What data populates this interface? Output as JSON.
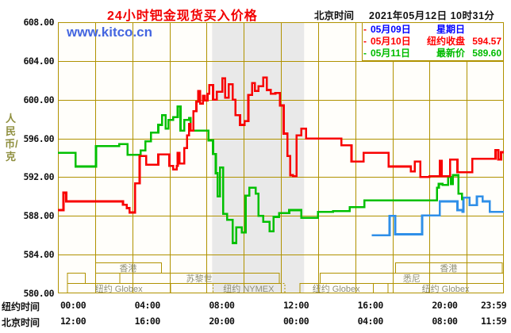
{
  "header": {
    "title": "24小时钯金现货买入价格",
    "timezone_label": "北京时间",
    "datetime": "2021年05月12日 10时31分"
  },
  "watermark": "www.kitco.cn",
  "legend": {
    "items": [
      {
        "dash_glyph": "-",
        "dash_color": "#ff0000",
        "date": "05月09日",
        "label": "星期日",
        "value": "",
        "text_color": "#0000ff"
      },
      {
        "dash_glyph": "-",
        "dash_color": "#ff0000",
        "date": "05月10日",
        "label": "纽约收盘",
        "value": "594.57",
        "text_color": "#ff0000"
      },
      {
        "dash_glyph": "-",
        "dash_color": "#00bb00",
        "date": "05月11日",
        "label": "最新价",
        "value": "589.60",
        "text_color": "#00bb00"
      }
    ]
  },
  "y_axis": {
    "unit_label": "人民币/克",
    "min": 580,
    "max": 608,
    "step": 4,
    "tick_labels": [
      "608.00",
      "604.00",
      "600.00",
      "596.00",
      "592.00",
      "588.00",
      "584.00",
      "580.00"
    ]
  },
  "x_axis": {
    "hours": 24,
    "gridline_every_hours": 2,
    "rows": [
      {
        "label": "纽约时间",
        "ticks": [
          "00:00",
          "04:00",
          "08:00",
          "12:00",
          "16:00",
          "20:00",
          "23:59"
        ]
      },
      {
        "label": "北京时间",
        "ticks": [
          "12:00",
          "16:00",
          "20:00",
          "00:00",
          "04:00",
          "08:00",
          "11:59"
        ]
      }
    ]
  },
  "colors": {
    "grid": "#b09200",
    "plot_bg": "#fffefa",
    "nymex_band": "#e9e9e9",
    "session_label": "#8f8f76",
    "line_sunday": "#2f8fe8",
    "line_monday": "#f80000",
    "line_tuesday": "#00c000"
  },
  "nymex_floor_band": {
    "t0": 8.3,
    "t1": 13.25
  },
  "sessions": [
    {
      "row": 1,
      "t0": 2.0,
      "t1": 5.55,
      "label": "香港",
      "dotted": false
    },
    {
      "row": 1,
      "t0": 18.15,
      "t1": 23.9,
      "label": "香港",
      "dotted": false
    },
    {
      "row": 2,
      "t0": 0.5,
      "t1": 1.45,
      "label": "",
      "dotted": false
    },
    {
      "row": 2,
      "t0": 3.3,
      "t1": 11.9,
      "label": "苏黎世",
      "dotted": false
    },
    {
      "row": 2,
      "t0": 14.1,
      "t1": 24.0,
      "label": "悉尼",
      "dotted": false
    },
    {
      "row": 3,
      "t0": 0.5,
      "t1": 6.05,
      "label": "纽约 Globex",
      "dotted": false
    },
    {
      "row": 3,
      "t0": 8.33,
      "t1": 12.2,
      "label": "纽约 NYMEX",
      "dotted": true
    },
    {
      "row": 3,
      "t0": 13.0,
      "t1": 16.95,
      "label": "纽约 Globex",
      "dotted": false
    },
    {
      "row": 3,
      "t0": 17.75,
      "t1": 24.0,
      "label": "纽约 Globex",
      "dotted": false
    }
  ],
  "chart_data": {
    "type": "line",
    "title": "24小时钯金现货买入价格",
    "xlabel": "纽约时间 00:00-23:59 / 北京时间 12:00-11:59",
    "ylabel": "人民币/克",
    "ylim": [
      580,
      608
    ],
    "xlim_hours": [
      0,
      24
    ],
    "grid": true,
    "legend_position": "top-right",
    "step_interpolation": true,
    "series": [
      {
        "name": "05月09日 星期日",
        "color": "#2f8fe8",
        "extend_to_end": true,
        "points": [
          [
            16.9,
            586.0
          ],
          [
            17.8,
            586.0
          ],
          [
            17.85,
            588.0
          ],
          [
            18.05,
            588.0
          ],
          [
            18.15,
            586.1
          ],
          [
            19.45,
            586.1
          ],
          [
            19.6,
            588.05
          ],
          [
            20.5,
            588.05
          ],
          [
            20.55,
            589.5
          ],
          [
            21.4,
            589.5
          ],
          [
            21.5,
            588.6
          ],
          [
            21.78,
            588.4
          ],
          [
            21.82,
            589.9
          ],
          [
            22.1,
            589.9
          ],
          [
            22.15,
            589.1
          ],
          [
            22.5,
            589.1
          ],
          [
            22.55,
            590.0
          ],
          [
            22.8,
            590.0
          ],
          [
            22.85,
            589.5
          ],
          [
            23.2,
            589.5
          ],
          [
            23.25,
            588.4
          ],
          [
            24,
            588.4
          ]
        ]
      },
      {
        "name": "05月11日 最新价 589.60",
        "color": "#00c000",
        "extend_to_end": false,
        "points": [
          [
            0,
            594.5
          ],
          [
            0.75,
            594.5
          ],
          [
            0.95,
            593.1
          ],
          [
            1.9,
            593.1
          ],
          [
            2.05,
            595.2
          ],
          [
            3.3,
            595.4
          ],
          [
            3.75,
            594.3
          ],
          [
            4.45,
            594.75
          ],
          [
            4.7,
            595.7
          ],
          [
            5.0,
            596.6
          ],
          [
            5.4,
            597.4
          ],
          [
            5.6,
            598.4
          ],
          [
            5.8,
            597.0
          ],
          [
            5.95,
            597.9
          ],
          [
            6.2,
            598.2
          ],
          [
            6.45,
            599.3
          ],
          [
            6.6,
            596.8
          ],
          [
            6.8,
            597.9
          ],
          [
            7.05,
            598.1
          ],
          [
            7.15,
            596.8
          ],
          [
            7.85,
            596.8
          ],
          [
            8.1,
            595.8
          ],
          [
            8.35,
            594.4
          ],
          [
            8.5,
            592.4
          ],
          [
            8.6,
            590.0
          ],
          [
            8.72,
            593.0
          ],
          [
            8.9,
            588.2
          ],
          [
            9.1,
            587.6
          ],
          [
            9.4,
            585.2
          ],
          [
            9.6,
            586.8
          ],
          [
            9.9,
            586.3
          ],
          [
            10.1,
            590.1
          ],
          [
            10.3,
            590.9
          ],
          [
            10.65,
            590.3
          ],
          [
            10.8,
            588.0
          ],
          [
            11.05,
            587.4
          ],
          [
            11.4,
            586.4
          ],
          [
            11.6,
            587.9
          ],
          [
            11.9,
            588.3
          ],
          [
            12.45,
            588.6
          ],
          [
            13.1,
            587.8
          ],
          [
            14.0,
            588.4
          ],
          [
            14.8,
            588.5
          ],
          [
            15.7,
            588.9
          ],
          [
            16.5,
            589.6
          ],
          [
            20.15,
            589.6
          ],
          [
            20.4,
            590.9
          ],
          [
            20.5,
            591.3
          ],
          [
            20.7,
            591.2
          ],
          [
            21.0,
            592.0
          ],
          [
            21.15,
            591.3
          ],
          [
            21.25,
            592.2
          ],
          [
            21.55,
            590.3
          ],
          [
            21.75,
            589.6
          ]
        ]
      },
      {
        "name": "05月10日 纽约收盘 594.57",
        "color": "#f80000",
        "extend_to_end": true,
        "points": [
          [
            0,
            588.6
          ],
          [
            0.25,
            588.6
          ],
          [
            0.3,
            590.4
          ],
          [
            0.45,
            589.5
          ],
          [
            3.3,
            589.5
          ],
          [
            3.5,
            589.15
          ],
          [
            3.7,
            588.8
          ],
          [
            3.85,
            588.35
          ],
          [
            4.1,
            588.35
          ],
          [
            4.15,
            591.35
          ],
          [
            4.35,
            591.35
          ],
          [
            4.4,
            594.2
          ],
          [
            4.75,
            593.3
          ],
          [
            5.4,
            594.35
          ],
          [
            6.0,
            593.15
          ],
          [
            6.2,
            592.8
          ],
          [
            6.4,
            593.15
          ],
          [
            6.45,
            594.5
          ],
          [
            6.55,
            593.4
          ],
          [
            6.7,
            593.4
          ],
          [
            6.8,
            595.0
          ],
          [
            6.95,
            596.3
          ],
          [
            7.05,
            597.5
          ],
          [
            7.15,
            596.8
          ],
          [
            7.3,
            598.8
          ],
          [
            7.45,
            599.8
          ],
          [
            7.55,
            600.9
          ],
          [
            7.65,
            599.6
          ],
          [
            7.8,
            600.4
          ],
          [
            7.9,
            599.9
          ],
          [
            8.05,
            600.6
          ],
          [
            8.15,
            601.5
          ],
          [
            8.35,
            600.0
          ],
          [
            8.55,
            600.8
          ],
          [
            8.85,
            602.2
          ],
          [
            9.0,
            600.2
          ],
          [
            9.2,
            601.6
          ],
          [
            9.4,
            600.0
          ],
          [
            9.55,
            598.4
          ],
          [
            9.8,
            597.4
          ],
          [
            10.05,
            597.8
          ],
          [
            10.25,
            600.5
          ],
          [
            10.45,
            601.7
          ],
          [
            10.6,
            600.9
          ],
          [
            10.8,
            601.4
          ],
          [
            11.05,
            602.3
          ],
          [
            11.25,
            601.0
          ],
          [
            11.45,
            600.6
          ],
          [
            11.7,
            600.7
          ],
          [
            11.95,
            599.4
          ],
          [
            12.15,
            596.5
          ],
          [
            12.35,
            594.2
          ],
          [
            12.5,
            592.2
          ],
          [
            12.65,
            592.1
          ],
          [
            12.85,
            596.3
          ],
          [
            13.1,
            597.0
          ],
          [
            13.35,
            596.0
          ],
          [
            15.25,
            595.3
          ],
          [
            15.8,
            593.6
          ],
          [
            16.1,
            593.6
          ],
          [
            16.45,
            594.5
          ],
          [
            17.8,
            593.1
          ],
          [
            19.0,
            592.6
          ],
          [
            19.2,
            593.6
          ],
          [
            19.5,
            592.0
          ],
          [
            20.0,
            592.1
          ],
          [
            20.55,
            593.7
          ],
          [
            20.65,
            592.1
          ],
          [
            21.1,
            593.8
          ],
          [
            21.5,
            592.5
          ],
          [
            22.3,
            593.9
          ],
          [
            23.55,
            594.8
          ],
          [
            23.7,
            593.8
          ],
          [
            23.85,
            594.57
          ]
        ]
      }
    ]
  }
}
